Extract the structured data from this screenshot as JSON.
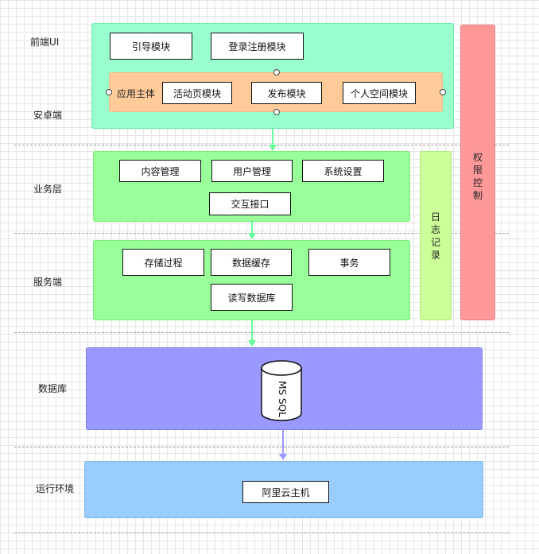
{
  "layers": {
    "frontend_ui": "前端UI",
    "android": "安卓端",
    "business": "业务层",
    "server": "服务端",
    "database": "数据库",
    "runtime": "运行环境"
  },
  "frontend": {
    "guide": "引导模块",
    "login": "登录注册模块",
    "app_main": "应用主体",
    "activity": "活动页模块",
    "publish": "发布模块",
    "personal": "个人空间模块"
  },
  "business": {
    "content": "内容管理",
    "user": "用户管理",
    "settings": "系统设置",
    "interface": "交互接口"
  },
  "server": {
    "procedure": "存储过程",
    "cache": "数据缓存",
    "transaction": "事务",
    "rw": "读写数据库"
  },
  "database": {
    "engine": "MS SQL"
  },
  "runtime": {
    "host": "阿里云主机"
  },
  "side": {
    "log": "日志记录",
    "permission": "权限控制"
  },
  "colors": {
    "frontend_panel": "#99FFCC",
    "app_main_panel": "#FFCC99",
    "business_panel": "#99FF99",
    "database_panel": "#9999FF",
    "runtime_panel": "#99CCFF",
    "log_panel": "#CCFF99",
    "permission_panel": "#FF9999",
    "arrow_green": "#66FF99",
    "arrow_purple": "#9999FF"
  }
}
